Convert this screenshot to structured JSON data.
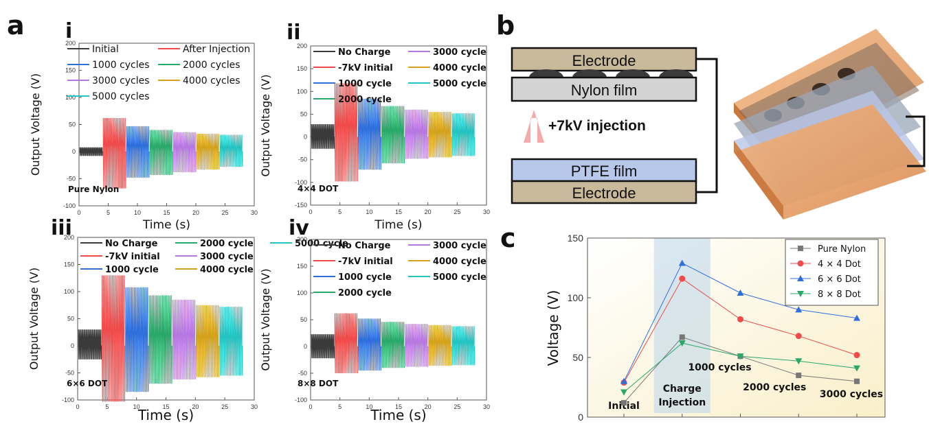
{
  "panel_labels": {
    "a": "a",
    "b": "b",
    "c": "c"
  },
  "subpanels": [
    {
      "roman": "i",
      "note": "Pure Nylon",
      "bold_legend": false,
      "legend_rows": 3
    },
    {
      "roman": "ii",
      "note": "4×4 DOT",
      "bold_legend": true,
      "legend_rows": 4
    },
    {
      "roman": "iii",
      "note": "6×6 DOT",
      "bold_legend": true,
      "legend_rows": 3
    },
    {
      "roman": "iv",
      "note": "8×8 DOT",
      "bold_legend": true,
      "legend_rows": 4
    }
  ],
  "diagram": {
    "top_electrode": "Electrode",
    "nylon_film": "Nylon film",
    "injection": "+7kV injection",
    "ptfe_film": "PTFE film",
    "bottom_electrode": "Electrode"
  },
  "colors": {
    "initial": "#3a3a3a",
    "injection": "#ef4b4b",
    "c1000": "#2f6fdc",
    "c2000": "#2aa86a",
    "c3000": "#b677e0",
    "c4000": "#d3a21a",
    "c5000": "#22c3c0",
    "electrode": "#c8b99a",
    "nylon": "#d3d3d3",
    "ptfe": "#b7c8ea",
    "arrow": "#f6a9a9"
  },
  "chart_data": [
    {
      "type": "line",
      "panel": "i",
      "xlabel": "Time (s)",
      "ylabel": "Output Voltage (V)",
      "xlim": [
        0,
        30
      ],
      "ylim": [
        -100,
        200
      ],
      "xticks": [
        0,
        5,
        10,
        15,
        20,
        25,
        30
      ],
      "yticks": [
        -100,
        -50,
        0,
        50,
        100,
        150,
        200
      ],
      "series": [
        {
          "name": "Initial",
          "t": [
            0,
            4
          ],
          "amp": [
            8,
            -8
          ]
        },
        {
          "name": "After Injection",
          "t": [
            4,
            8
          ],
          "amp": [
            62,
            -68
          ]
        },
        {
          "name": "1000 cycles",
          "t": [
            8,
            12
          ],
          "amp": [
            47,
            -48
          ]
        },
        {
          "name": "2000 cycles",
          "t": [
            12,
            16
          ],
          "amp": [
            40,
            -43
          ]
        },
        {
          "name": "3000 cycles",
          "t": [
            16,
            20
          ],
          "amp": [
            36,
            -38
          ]
        },
        {
          "name": "4000 cycles",
          "t": [
            20,
            24
          ],
          "amp": [
            33,
            -33
          ]
        },
        {
          "name": "5000 cycles",
          "t": [
            24,
            28
          ],
          "amp": [
            31,
            -28
          ]
        }
      ]
    },
    {
      "type": "line",
      "panel": "ii",
      "xlabel": "Time (s)",
      "ylabel": "Output Voltage (V)",
      "xlim": [
        0,
        30
      ],
      "ylim": [
        -150,
        200
      ],
      "xticks": [
        0,
        5,
        10,
        15,
        20,
        25,
        30
      ],
      "yticks": [
        -150,
        -100,
        -50,
        0,
        50,
        100,
        150,
        200
      ],
      "series": [
        {
          "name": "No Charge",
          "t": [
            0,
            4
          ],
          "amp": [
            28,
            -26
          ]
        },
        {
          "name": "-7kV initial",
          "t": [
            4,
            8
          ],
          "amp": [
            118,
            -98
          ]
        },
        {
          "name": "1000 cycle",
          "t": [
            8,
            12
          ],
          "amp": [
            84,
            -72
          ]
        },
        {
          "name": "2000 cycle",
          "t": [
            12,
            16
          ],
          "amp": [
            68,
            -58
          ]
        },
        {
          "name": "3000 cycle",
          "t": [
            16,
            20
          ],
          "amp": [
            60,
            -48
          ]
        },
        {
          "name": "4000 cycle",
          "t": [
            20,
            24
          ],
          "amp": [
            55,
            -45
          ]
        },
        {
          "name": "5000 cycle",
          "t": [
            24,
            28
          ],
          "amp": [
            52,
            -42
          ]
        }
      ]
    },
    {
      "type": "line",
      "panel": "iii",
      "xlabel": "Time (s)",
      "ylabel": "Output Voltage (V)",
      "xlim": [
        0,
        30
      ],
      "ylim": [
        -100,
        200
      ],
      "xticks": [
        0,
        5,
        10,
        15,
        20,
        25,
        30
      ],
      "yticks": [
        -100,
        -50,
        0,
        50,
        100,
        150,
        200
      ],
      "series": [
        {
          "name": "No Charge",
          "t": [
            0,
            4
          ],
          "amp": [
            30,
            -25
          ]
        },
        {
          "name": "-7kV initial",
          "t": [
            4,
            8
          ],
          "amp": [
            130,
            -103
          ]
        },
        {
          "name": "1000 cycle",
          "t": [
            8,
            12
          ],
          "amp": [
            108,
            -85
          ]
        },
        {
          "name": "2000 cycle",
          "t": [
            12,
            16
          ],
          "amp": [
            93,
            -70
          ]
        },
        {
          "name": "3000 cycle",
          "t": [
            16,
            20
          ],
          "amp": [
            85,
            -62
          ]
        },
        {
          "name": "4000 cycle",
          "t": [
            20,
            24
          ],
          "amp": [
            75,
            -58
          ]
        },
        {
          "name": "5000 cycle",
          "t": [
            24,
            28
          ],
          "amp": [
            72,
            -55
          ]
        }
      ]
    },
    {
      "type": "line",
      "panel": "iv",
      "xlabel": "Time (s)",
      "ylabel": "Output Voltage (V)",
      "xlim": [
        0,
        30
      ],
      "ylim": [
        -100,
        200
      ],
      "xticks": [
        0,
        5,
        10,
        15,
        20,
        25,
        30
      ],
      "yticks": [
        -100,
        -50,
        0,
        50,
        100,
        150,
        200
      ],
      "series": [
        {
          "name": "No Charge",
          "t": [
            0,
            4
          ],
          "amp": [
            23,
            -22
          ]
        },
        {
          "name": "-7kV initial",
          "t": [
            4,
            8
          ],
          "amp": [
            62,
            -50
          ]
        },
        {
          "name": "1000 cycle",
          "t": [
            8,
            12
          ],
          "amp": [
            52,
            -45
          ]
        },
        {
          "name": "2000 cycle",
          "t": [
            12,
            16
          ],
          "amp": [
            46,
            -40
          ]
        },
        {
          "name": "3000 cycle",
          "t": [
            16,
            20
          ],
          "amp": [
            42,
            -38
          ]
        },
        {
          "name": "4000 cycle",
          "t": [
            20,
            24
          ],
          "amp": [
            40,
            -36
          ]
        },
        {
          "name": "5000 cycle",
          "t": [
            24,
            28
          ],
          "amp": [
            38,
            -35
          ]
        }
      ]
    },
    {
      "type": "line",
      "panel": "c",
      "ylabel": "Voltage (V)",
      "ylim": [
        0,
        150
      ],
      "yticks": [
        0,
        50,
        100,
        150
      ],
      "categories": [
        "Initial",
        "Charge Injection",
        "1000 cycles",
        "2000 cycles",
        "3000 cycles"
      ],
      "series": [
        {
          "name": "Pure Nylon",
          "values": [
            12,
            67,
            51,
            35,
            30
          ],
          "color": "#777777",
          "marker": "square"
        },
        {
          "name": "4 × 4 Dot",
          "values": [
            29,
            116,
            82,
            68,
            52
          ],
          "color": "#ef4b4b",
          "marker": "circle"
        },
        {
          "name": "6 × 6 Dot",
          "values": [
            30,
            129,
            104,
            90,
            83
          ],
          "color": "#2f6fdc",
          "marker": "triangle-up"
        },
        {
          "name": "8 × 8 Dot",
          "values": [
            21,
            62,
            51,
            47,
            41
          ],
          "color": "#2aa86a",
          "marker": "triangle-down"
        }
      ]
    }
  ]
}
